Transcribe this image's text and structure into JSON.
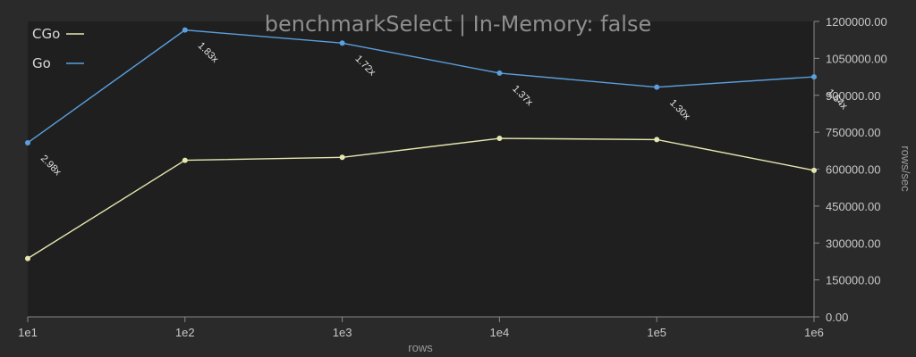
{
  "chart_data": {
    "type": "line",
    "title": "benchmarkSelect | In-Memory: false",
    "xlabel": "rows",
    "ylabel": "rows/sec",
    "x_scale": "log",
    "categories": [
      "1e1",
      "1e2",
      "1e3",
      "1e4",
      "1e5",
      "1e6"
    ],
    "ylim": [
      0,
      1200000
    ],
    "yticks": [
      "0.00",
      "150000.00",
      "300000.00",
      "450000.00",
      "600000.00",
      "750000.00",
      "900000.00",
      "1050000.00",
      "1200000.00"
    ],
    "series": [
      {
        "name": "CGo",
        "color": "#e6e7b0",
        "values": [
          237000,
          636000,
          648000,
          725000,
          720000,
          595000
        ]
      },
      {
        "name": "Go",
        "color": "#5b9fde",
        "values": [
          707000,
          1165000,
          1112000,
          990000,
          933000,
          975000
        ]
      }
    ],
    "annotations": [
      "2.98x",
      "1.83x",
      "1.72x",
      "1.37x",
      "1.30x",
      "1.64x"
    ],
    "legend_position": "top-left",
    "grid": false,
    "colors": {
      "background": "#2a2a2a",
      "plot_background": "#1f1f1f",
      "axis": "#8a8a8a"
    }
  }
}
